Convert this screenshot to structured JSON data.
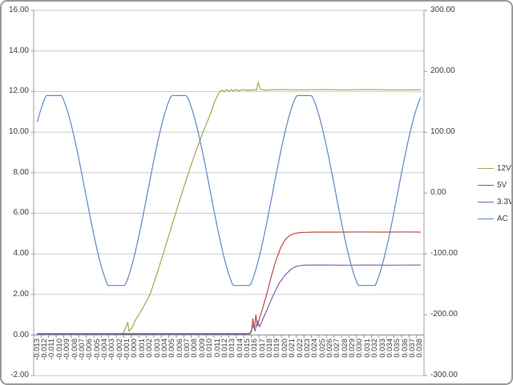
{
  "chart": {
    "title": "",
    "colors": {
      "background": "#ffffff",
      "gridline": "#c9c9c9",
      "axis_line": "#9e9e9e",
      "category_axis_line": "#8e8e8e",
      "label_text": "#3f3f3f",
      "frame_border": "#9a9a9a",
      "series_12v": "#a3a84c",
      "series_5v": "#be4b48",
      "series_3v3": "#7e69a5",
      "series_ac": "#6089c5"
    },
    "left_axis": {
      "labels": [
        "16.00",
        "14.00",
        "12.00",
        "10.00",
        "8.00",
        "6.00",
        "4.00",
        "2.00",
        "0.00",
        "-2.00"
      ],
      "max": 16,
      "min": -2,
      "step": 2
    },
    "right_axis": {
      "labels": [
        "300.00",
        "200.00",
        "100.00",
        "0.00",
        "-100.00",
        "-200.00",
        "-300.00"
      ],
      "max": 300,
      "min": -300,
      "step": 100
    },
    "x_axis": {
      "labels": [
        "-0.013",
        "-0.012",
        "-0.011",
        "-0.010",
        "-0.009",
        "-0.008",
        "-0.007",
        "-0.006",
        "-0.005",
        "-0.004",
        "-0.003",
        "-0.002",
        "-0.001",
        "0.000",
        "0.001",
        "0.002",
        "0.003",
        "0.004",
        "0.005",
        "0.006",
        "0.007",
        "0.008",
        "0.009",
        "0.010",
        "0.011",
        "0.012",
        "0.013",
        "0.014",
        "0.015",
        "0.016",
        "0.017",
        "0.018",
        "0.019",
        "0.020",
        "0.021",
        "0.022",
        "0.023",
        "0.024",
        "0.025",
        "0.026",
        "0.027",
        "0.028",
        "0.029",
        "0.030",
        "0.031",
        "0.032",
        "0.033",
        "0.034",
        "0.035",
        "0.036",
        "0.037",
        "0.038"
      ]
    },
    "legend": [
      {
        "label": "12V",
        "color": "#a3a84c"
      },
      {
        "label": "5V",
        "color": "#be4b48"
      },
      {
        "label": "3.3V",
        "color": "#7e69a5"
      },
      {
        "label": "AC",
        "color": "#6089c5"
      }
    ]
  },
  "chart_data": {
    "type": "line",
    "title": "",
    "xlabel": "",
    "ylabel": "",
    "x_range": [
      -0.013,
      0.038
    ],
    "x_tick_step": 0.001,
    "left_ylim": [
      -2,
      16
    ],
    "right_ylim": [
      -300,
      300
    ],
    "gridlines": "horizontal-only",
    "legend_position": "right",
    "series": [
      {
        "name": "12V",
        "axis": "left",
        "color": "#a3a84c",
        "points": [
          [
            -0.013,
            0.05
          ],
          [
            -0.0016,
            0.05
          ],
          [
            -0.0012,
            0.4
          ],
          [
            -0.00095,
            0.62
          ],
          [
            -0.0008,
            0.18
          ],
          [
            -0.0004,
            0.35
          ],
          [
            0.0,
            0.7
          ],
          [
            0.001,
            1.3
          ],
          [
            0.002,
            2.0
          ],
          [
            0.003,
            3.1
          ],
          [
            0.004,
            4.3
          ],
          [
            0.005,
            5.5
          ],
          [
            0.006,
            6.7
          ],
          [
            0.007,
            7.85
          ],
          [
            0.008,
            8.95
          ],
          [
            0.009,
            9.95
          ],
          [
            0.01,
            10.85
          ],
          [
            0.0106,
            11.5
          ],
          [
            0.0112,
            11.95
          ],
          [
            0.0116,
            12.08
          ],
          [
            0.0119,
            11.98
          ],
          [
            0.0122,
            12.1
          ],
          [
            0.0125,
            12.0
          ],
          [
            0.0128,
            12.1
          ],
          [
            0.0131,
            12.02
          ],
          [
            0.0134,
            12.1
          ],
          [
            0.0138,
            12.04
          ],
          [
            0.0143,
            12.1
          ],
          [
            0.015,
            12.06
          ],
          [
            0.0158,
            12.09
          ],
          [
            0.0162,
            12.07
          ],
          [
            0.0164,
            12.45
          ],
          [
            0.0167,
            12.12
          ],
          [
            0.0172,
            12.07
          ],
          [
            0.019,
            12.1
          ],
          [
            0.022,
            12.08
          ],
          [
            0.025,
            12.1
          ],
          [
            0.028,
            12.08
          ],
          [
            0.031,
            12.1
          ],
          [
            0.034,
            12.08
          ],
          [
            0.038,
            12.09
          ]
        ]
      },
      {
        "name": "5V",
        "axis": "left",
        "color": "#be4b48",
        "points": [
          [
            -0.013,
            0.07
          ],
          [
            0.0152,
            0.07
          ],
          [
            0.0155,
            0.15
          ],
          [
            0.0157,
            0.8
          ],
          [
            0.0159,
            0.3
          ],
          [
            0.0161,
            1.0
          ],
          [
            0.0163,
            0.45
          ],
          [
            0.0166,
            0.85
          ],
          [
            0.017,
            1.3
          ],
          [
            0.0176,
            2.1
          ],
          [
            0.0182,
            2.95
          ],
          [
            0.0188,
            3.7
          ],
          [
            0.0194,
            4.3
          ],
          [
            0.02,
            4.7
          ],
          [
            0.0206,
            4.9
          ],
          [
            0.0212,
            5.0
          ],
          [
            0.022,
            5.05
          ],
          [
            0.024,
            5.07
          ],
          [
            0.027,
            5.07
          ],
          [
            0.03,
            5.08
          ],
          [
            0.033,
            5.07
          ],
          [
            0.036,
            5.08
          ],
          [
            0.038,
            5.07
          ]
        ]
      },
      {
        "name": "3.3V",
        "axis": "left",
        "color": "#7e69a5",
        "points": [
          [
            -0.013,
            0.04
          ],
          [
            0.0153,
            0.04
          ],
          [
            0.0157,
            0.45
          ],
          [
            0.016,
            0.2
          ],
          [
            0.0163,
            0.7
          ],
          [
            0.0166,
            0.4
          ],
          [
            0.017,
            0.75
          ],
          [
            0.0177,
            1.35
          ],
          [
            0.0184,
            1.95
          ],
          [
            0.0192,
            2.55
          ],
          [
            0.02,
            2.95
          ],
          [
            0.0208,
            3.25
          ],
          [
            0.0216,
            3.4
          ],
          [
            0.0225,
            3.44
          ],
          [
            0.025,
            3.45
          ],
          [
            0.028,
            3.44
          ],
          [
            0.031,
            3.45
          ],
          [
            0.034,
            3.44
          ],
          [
            0.038,
            3.45
          ]
        ]
      },
      {
        "name": "AC",
        "axis": "right",
        "color": "#6089c5",
        "model": {
          "type": "clipped_sine",
          "midpoint": 2.5,
          "amplitude": 170,
          "frequency_hz": 60,
          "phase_offset_s": 0.01497,
          "clip_high": 157.5,
          "clip_low": -154.5,
          "sample_step_s": 0.0002,
          "peak_flat_value": 160,
          "trough_flat_value": -152
        }
      }
    ]
  }
}
